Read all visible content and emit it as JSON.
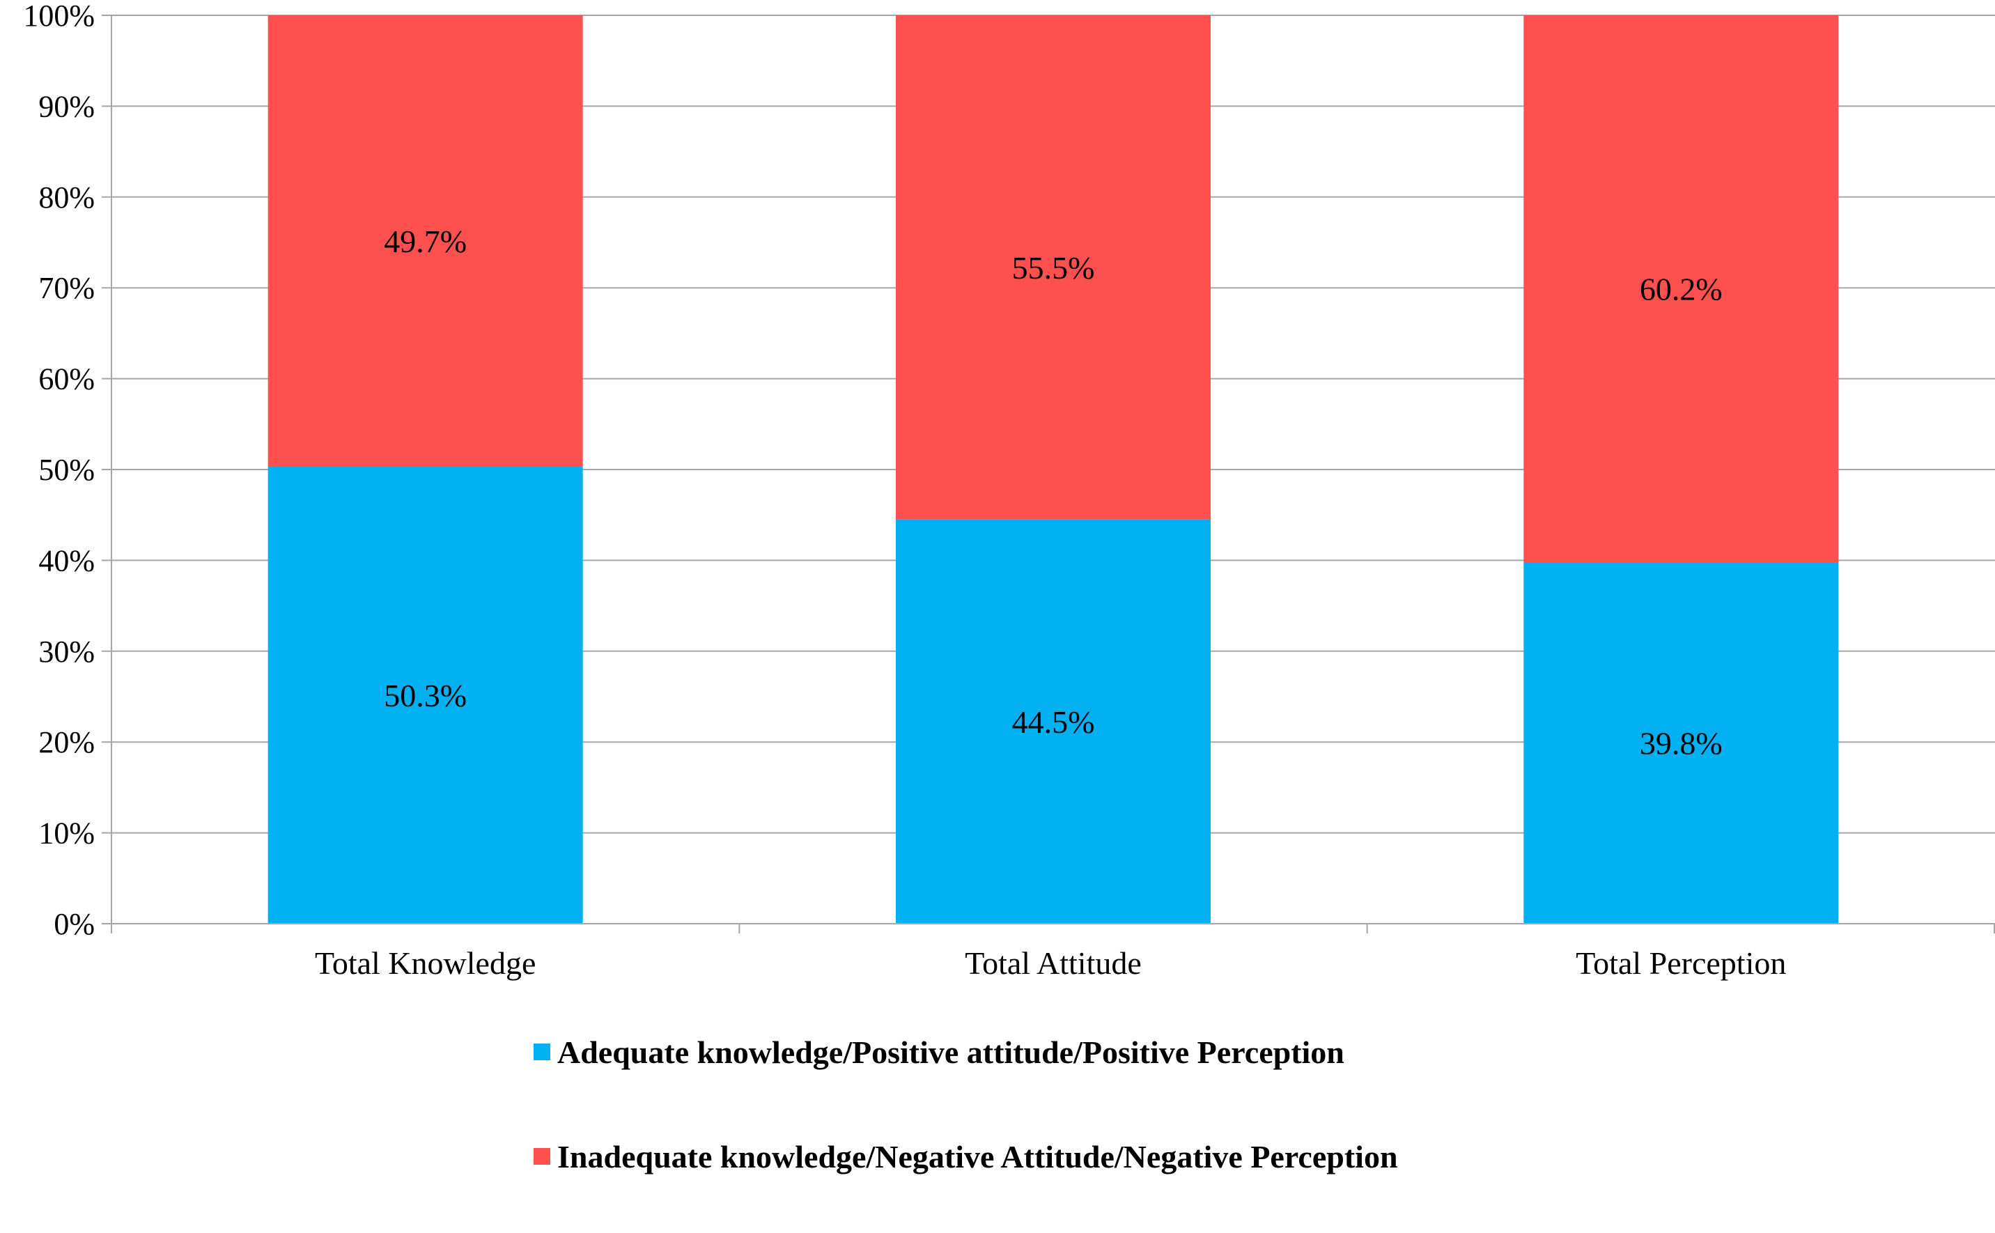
{
  "chart_data": {
    "type": "bar",
    "stacked": true,
    "categories": [
      "Total Knowledge",
      "Total Attitude",
      "Total Perception"
    ],
    "series": [
      {
        "name": "Adequate knowledge/Positive attitude/Positive Perception",
        "color": "#00B0F0",
        "values": [
          50.3,
          44.5,
          39.8
        ],
        "labels": [
          "50.3%",
          "44.5%",
          "39.8%"
        ]
      },
      {
        "name": "Inadequate knowledge/Negative Attitude/Negative Perception",
        "color": "#FF5050",
        "values": [
          49.7,
          55.5,
          60.2
        ],
        "labels": [
          "49.7%",
          "55.5%",
          "60.2%"
        ]
      }
    ],
    "y_ticks": [
      "0%",
      "10%",
      "20%",
      "30%",
      "40%",
      "50%",
      "60%",
      "70%",
      "80%",
      "90%",
      "100%"
    ],
    "ylim": [
      0,
      100
    ],
    "grid": true,
    "legend_position": "bottom",
    "title": "",
    "xlabel": "",
    "ylabel": ""
  }
}
